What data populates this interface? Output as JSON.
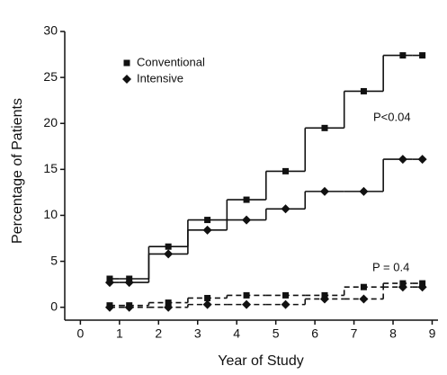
{
  "chart_data": {
    "type": "step",
    "xlabel": "Year of Study",
    "ylabel": "Percentage of Patients",
    "x": [
      0.75,
      1.25,
      2.25,
      3.25,
      4.25,
      5.25,
      6.25,
      7.25,
      8.25,
      8.75
    ],
    "series": [
      {
        "name": "Conventional",
        "marker": "square",
        "color": "#111111",
        "values": [
          3.1,
          3.1,
          6.6,
          9.5,
          11.7,
          14.8,
          19.5,
          23.5,
          27.4,
          27.4
        ],
        "dashed_values": [
          0.2,
          0.2,
          0.5,
          1.0,
          1.3,
          1.3,
          1.3,
          2.2,
          2.6,
          2.6
        ]
      },
      {
        "name": "Intensive",
        "marker": "diamond",
        "color": "#111111",
        "values": [
          2.7,
          2.7,
          5.8,
          8.4,
          9.5,
          10.7,
          12.6,
          12.6,
          16.1,
          16.1
        ],
        "dashed_values": [
          0,
          0,
          0,
          0.3,
          0.3,
          0.3,
          0.9,
          0.9,
          2.2,
          2.2
        ]
      }
    ],
    "annotations": [
      "P<0.04",
      "P = 0.4"
    ],
    "xlim": [
      -0.4,
      9.15
    ],
    "ylim": [
      -1.4,
      30
    ],
    "xticks": [
      0,
      1,
      2,
      3,
      4,
      5,
      6,
      7,
      8,
      9
    ],
    "yticks": [
      0,
      5,
      10,
      15,
      20,
      25,
      30
    ]
  }
}
